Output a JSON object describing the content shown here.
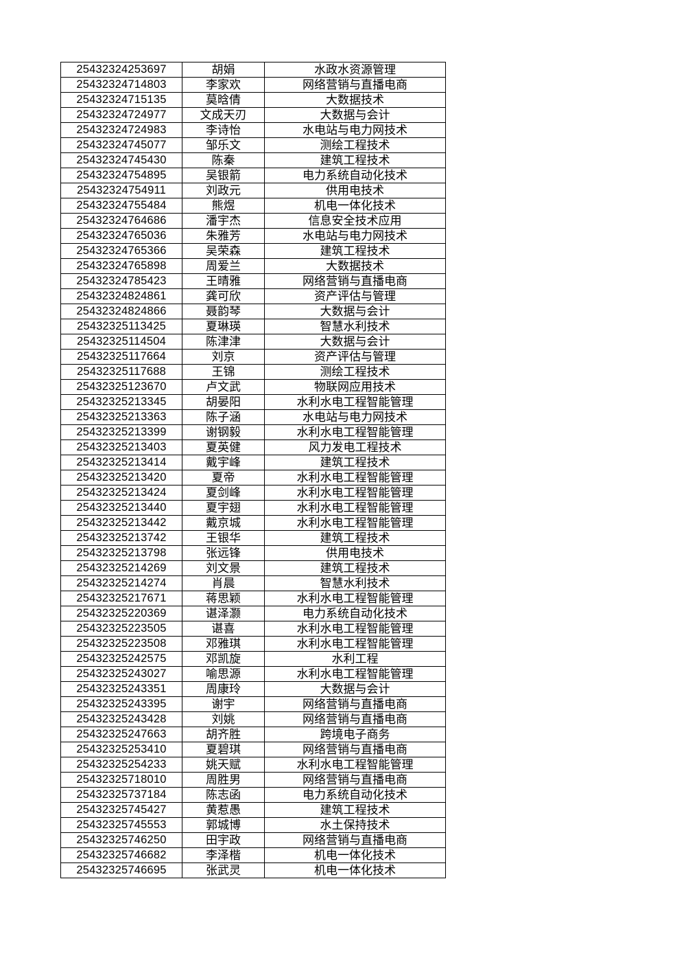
{
  "page": {
    "background": "#ffffff"
  },
  "table": {
    "border_color": "#000000",
    "text_color": "#000000",
    "rows": [
      [
        "25432324253697",
        "胡娟",
        "水政水资源管理"
      ],
      [
        "25432324714803",
        "李家欢",
        "网络营销与直播电商"
      ],
      [
        "25432324715135",
        "莫晗倩",
        "大数据技术"
      ],
      [
        "25432324724977",
        "文成天刃",
        "大数据与会计"
      ],
      [
        "25432324724983",
        "李诗怡",
        "水电站与电力网技术"
      ],
      [
        "25432324745077",
        "邹乐文",
        "测绘工程技术"
      ],
      [
        "25432324745430",
        "陈秦",
        "建筑工程技术"
      ],
      [
        "25432324754895",
        "吴银箭",
        "电力系统自动化技术"
      ],
      [
        "25432324754911",
        "刘政元",
        "供用电技术"
      ],
      [
        "25432324755484",
        "熊煜",
        "机电一体化技术"
      ],
      [
        "25432324764686",
        "潘宇杰",
        "信息安全技术应用"
      ],
      [
        "25432324765036",
        "朱雅芳",
        "水电站与电力网技术"
      ],
      [
        "25432324765366",
        "吴荣森",
        "建筑工程技术"
      ],
      [
        "25432324765898",
        "周爱兰",
        "大数据技术"
      ],
      [
        "25432324785423",
        "王晴雅",
        "网络营销与直播电商"
      ],
      [
        "25432324824861",
        "龚可欣",
        "资产评估与管理"
      ],
      [
        "25432324824866",
        "聂韵琴",
        "大数据与会计"
      ],
      [
        "25432325113425",
        "夏琳瑛",
        "智慧水利技术"
      ],
      [
        "25432325114504",
        "陈津津",
        "大数据与会计"
      ],
      [
        "25432325117664",
        "刘京",
        "资产评估与管理"
      ],
      [
        "25432325117688",
        "王锦",
        "测绘工程技术"
      ],
      [
        "25432325123670",
        "卢文武",
        "物联网应用技术"
      ],
      [
        "25432325213345",
        "胡晏阳",
        "水利水电工程智能管理"
      ],
      [
        "25432325213363",
        "陈子涵",
        "水电站与电力网技术"
      ],
      [
        "25432325213399",
        "谢钢毅",
        "水利水电工程智能管理"
      ],
      [
        "25432325213403",
        "夏英健",
        "风力发电工程技术"
      ],
      [
        "25432325213414",
        "戴宇峰",
        "建筑工程技术"
      ],
      [
        "25432325213420",
        "夏帝",
        "水利水电工程智能管理"
      ],
      [
        "25432325213424",
        "夏剑峰",
        "水利水电工程智能管理"
      ],
      [
        "25432325213440",
        "夏宇翅",
        "水利水电工程智能管理"
      ],
      [
        "25432325213442",
        "戴京城",
        "水利水电工程智能管理"
      ],
      [
        "25432325213742",
        "王银华",
        "建筑工程技术"
      ],
      [
        "25432325213798",
        "张远锋",
        "供用电技术"
      ],
      [
        "25432325214269",
        "刘文景",
        "建筑工程技术"
      ],
      [
        "25432325214274",
        "肖晨",
        "智慧水利技术"
      ],
      [
        "25432325217671",
        "蒋思颖",
        "水利水电工程智能管理"
      ],
      [
        "25432325220369",
        "谌泽灏",
        "电力系统自动化技术"
      ],
      [
        "25432325223505",
        "谌喜",
        "水利水电工程智能管理"
      ],
      [
        "25432325223508",
        "邓雅琪",
        "水利水电工程智能管理"
      ],
      [
        "25432325242575",
        "邓凯旋",
        "水利工程"
      ],
      [
        "25432325243027",
        "喻思源",
        "水利水电工程智能管理"
      ],
      [
        "25432325243351",
        "周康玲",
        "大数据与会计"
      ],
      [
        "25432325243395",
        "谢宇",
        "网络营销与直播电商"
      ],
      [
        "25432325243428",
        "刘姚",
        "网络营销与直播电商"
      ],
      [
        "25432325247663",
        "胡齐胜",
        "跨境电子商务"
      ],
      [
        "25432325253410",
        "夏碧琪",
        "网络营销与直播电商"
      ],
      [
        "25432325254233",
        "姚天赋",
        "水利水电工程智能管理"
      ],
      [
        "25432325718010",
        "周胜男",
        "网络营销与直播电商"
      ],
      [
        "25432325737184",
        "陈志函",
        "电力系统自动化技术"
      ],
      [
        "25432325745427",
        "黄惹愚",
        "建筑工程技术"
      ],
      [
        "25432325745553",
        "郭城博",
        "水土保持技术"
      ],
      [
        "25432325746250",
        "田宇政",
        "网络营销与直播电商"
      ],
      [
        "25432325746682",
        "李泽楷",
        "机电一体化技术"
      ],
      [
        "25432325746695",
        "张武灵",
        "机电一体化技术"
      ]
    ]
  }
}
